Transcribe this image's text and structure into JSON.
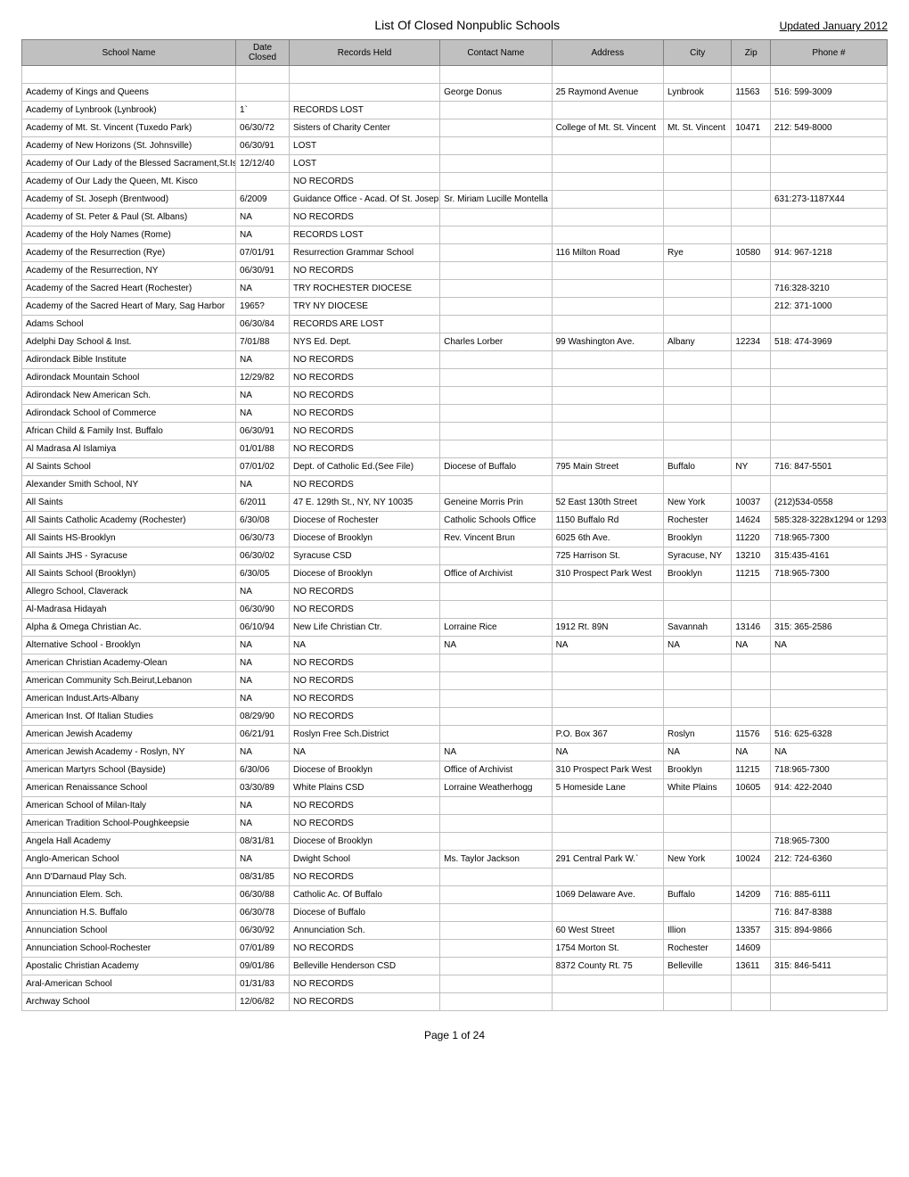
{
  "title": "List Of Closed Nonpublic Schools",
  "updated": "Updated January 2012",
  "footer": "Page 1 of 24",
  "columns": [
    "School Name",
    "Date Closed",
    "Records Held",
    "Contact Name",
    "Address",
    "City",
    "Zip",
    "Phone #"
  ],
  "rows": [
    [
      "",
      "",
      "",
      "",
      "",
      "",
      "",
      ""
    ],
    [
      "Academy of Kings and Queens",
      "",
      "",
      "George Donus",
      "25 Raymond Avenue",
      "Lynbrook",
      "11563",
      "516: 599-3009"
    ],
    [
      "Academy of Lynbrook (Lynbrook)",
      "1`",
      "RECORDS LOST",
      "",
      "",
      "",
      "",
      ""
    ],
    [
      "Academy of Mt. St. Vincent (Tuxedo Park)",
      "06/30/72",
      "Sisters of Charity Center",
      "",
      "College of Mt. St. Vincent",
      "Mt. St. Vincent",
      "10471",
      "212: 549-8000"
    ],
    [
      "Academy of New Horizons (St. Johnsville)",
      "06/30/91",
      "LOST",
      "",
      "",
      "",
      "",
      ""
    ],
    [
      "Academy of Our Lady of the Blessed Sacrament,St.Is",
      "12/12/40",
      "LOST",
      "",
      "",
      "",
      "",
      ""
    ],
    [
      "Academy of Our Lady the Queen, Mt. Kisco",
      "",
      "NO RECORDS",
      "",
      "",
      "",
      "",
      ""
    ],
    [
      "Academy of St. Joseph (Brentwood)",
      "6/2009",
      "Guidance Office - Acad. Of St. Joseph",
      "Sr. Miriam Lucille Montella",
      "",
      "",
      "",
      "631:273-1187X44"
    ],
    [
      "Academy of St. Peter & Paul (St. Albans)",
      "NA",
      "NO RECORDS",
      "",
      "",
      "",
      "",
      ""
    ],
    [
      "Academy of the Holy Names (Rome)",
      "NA",
      "RECORDS LOST",
      "",
      "",
      "",
      "",
      ""
    ],
    [
      "Academy of the Resurrection (Rye)",
      "07/01/91",
      "Resurrection Grammar School",
      "",
      "116 Milton Road",
      "Rye",
      "10580",
      "914: 967-1218"
    ],
    [
      "Academy of the Resurrection, NY",
      "06/30/91",
      "NO RECORDS",
      "",
      "",
      "",
      "",
      ""
    ],
    [
      "Academy of the Sacred Heart (Rochester)",
      "NA",
      "TRY ROCHESTER DIOCESE",
      "",
      "",
      "",
      "",
      "716:328-3210"
    ],
    [
      "Academy of the Sacred Heart of Mary, Sag Harbor",
      "1965?",
      "TRY NY DIOCESE",
      "",
      "",
      "",
      "",
      "212: 371-1000"
    ],
    [
      "Adams School",
      "06/30/84",
      "RECORDS ARE LOST",
      "",
      "",
      "",
      "",
      ""
    ],
    [
      "Adelphi Day School & Inst.",
      "7/01/88",
      "NYS Ed. Dept.",
      "Charles Lorber",
      "99 Washington Ave.",
      "Albany",
      "12234",
      "518: 474-3969"
    ],
    [
      "Adirondack Bible Institute",
      "NA",
      "NO RECORDS",
      "",
      "",
      "",
      "",
      ""
    ],
    [
      "Adirondack Mountain School",
      "12/29/82",
      "NO RECORDS",
      "",
      "",
      "",
      "",
      ""
    ],
    [
      "Adirondack New American Sch.",
      "NA",
      "NO RECORDS",
      "",
      "",
      "",
      "",
      ""
    ],
    [
      "Adirondack School of Commerce",
      "NA",
      "NO RECORDS",
      "",
      "",
      "",
      "",
      ""
    ],
    [
      "African Child & Family Inst. Buffalo",
      "06/30/91",
      "NO RECORDS",
      "",
      "",
      "",
      "",
      ""
    ],
    [
      "Al Madrasa Al Islamiya",
      "01/01/88",
      "NO RECORDS",
      "",
      "",
      "",
      "",
      ""
    ],
    [
      "Al Saints School",
      "07/01/02",
      "Dept. of Catholic Ed.(See File)",
      "Diocese of Buffalo",
      "795 Main Street",
      "Buffalo",
      "NY",
      "716: 847-5501"
    ],
    [
      "Alexander Smith School, NY",
      "NA",
      "NO RECORDS",
      "",
      "",
      "",
      "",
      ""
    ],
    [
      "All Saints",
      "6/2011",
      "47 E. 129th St., NY, NY 10035",
      "Geneine Morris Prin",
      "52 East 130th Street",
      "New York",
      "10037",
      "(212)534-0558"
    ],
    [
      "All Saints Catholic Academy (Rochester)",
      "6/30/08",
      "Diocese of Rochester",
      "Catholic Schools Office",
      "1150 Buffalo Rd",
      "Rochester",
      "14624",
      "585:328-3228x1294 or 1293"
    ],
    [
      "All Saints HS-Brooklyn",
      "06/30/73",
      "Diocese of Brooklyn",
      "Rev. Vincent Brun",
      "6025 6th Ave.",
      "Brooklyn",
      "11220",
      "718:965-7300"
    ],
    [
      "All Saints JHS - Syracuse",
      "06/30/02",
      "Syracuse CSD",
      "",
      "725 Harrison St.",
      "Syracuse, NY",
      "13210",
      "315:435-4161"
    ],
    [
      "All Saints School (Brooklyn)",
      "6/30/05",
      "Diocese of Brooklyn",
      "Office of Archivist",
      "310 Prospect Park West",
      "Brooklyn",
      "11215",
      "718:965-7300"
    ],
    [
      "Allegro School, Claverack",
      "NA",
      "NO RECORDS",
      "",
      "",
      "",
      "",
      ""
    ],
    [
      "Al-Madrasa Hidayah",
      "06/30/90",
      "NO RECORDS",
      "",
      "",
      "",
      "",
      ""
    ],
    [
      "Alpha & Omega Christian Ac.",
      "06/10/94",
      "New Life Christian Ctr.",
      "Lorraine Rice",
      "1912 Rt. 89N",
      "Savannah",
      "13146",
      "315: 365-2586"
    ],
    [
      "Alternative School - Brooklyn",
      "NA",
      "NA",
      "NA",
      "NA",
      "NA",
      "NA",
      "NA"
    ],
    [
      "American Christian Academy-Olean",
      "NA",
      "NO RECORDS",
      "",
      "",
      "",
      "",
      ""
    ],
    [
      "American Community Sch.Beirut,Lebanon",
      "NA",
      "NO RECORDS",
      "",
      "",
      "",
      "",
      ""
    ],
    [
      "American Indust.Arts-Albany",
      "NA",
      "NO RECORDS",
      "",
      "",
      "",
      "",
      ""
    ],
    [
      "American Inst. Of Italian Studies",
      "08/29/90",
      "NO RECORDS",
      "",
      "",
      "",
      "",
      ""
    ],
    [
      "American Jewish Academy",
      "06/21/91",
      "Roslyn Free Sch.District",
      "",
      "P.O. Box 367",
      "Roslyn",
      "11576",
      "516: 625-6328"
    ],
    [
      "American Jewish Academy - Roslyn, NY",
      "NA",
      "NA",
      "NA",
      "NA",
      "NA",
      "NA",
      "NA"
    ],
    [
      "American Martyrs School (Bayside)",
      "6/30/06",
      "Diocese of Brooklyn",
      "Office of Archivist",
      "310 Prospect Park West",
      "Brooklyn",
      "11215",
      "718:965-7300"
    ],
    [
      "American Renaissance School",
      "03/30/89",
      "White Plains CSD",
      "Lorraine Weatherhogg",
      "5 Homeside Lane",
      "White Plains",
      "10605",
      "914: 422-2040"
    ],
    [
      "American School of Milan-Italy",
      "NA",
      "NO RECORDS",
      "",
      "",
      "",
      "",
      ""
    ],
    [
      "American Tradition School-Poughkeepsie",
      "NA",
      "NO RECORDS",
      "",
      "",
      "",
      "",
      ""
    ],
    [
      "Angela Hall Academy",
      "08/31/81",
      "Diocese of Brooklyn",
      "",
      "",
      "",
      "",
      "718:965-7300"
    ],
    [
      "Anglo-American School",
      "NA",
      "Dwight School",
      "Ms. Taylor Jackson",
      "291 Central Park W.`",
      "New York",
      "10024",
      "212: 724-6360"
    ],
    [
      "Ann D'Darnaud Play Sch.",
      "08/31/85",
      "NO RECORDS",
      "",
      "",
      "",
      "",
      ""
    ],
    [
      "Annunciation Elem. Sch.",
      "06/30/88",
      "Catholic Ac. Of Buffalo",
      "",
      "1069 Delaware Ave.",
      "Buffalo",
      "14209",
      "716: 885-6111"
    ],
    [
      "Annunciation H.S. Buffalo",
      "06/30/78",
      "Diocese of Buffalo",
      "",
      "",
      "",
      "",
      "716: 847-8388"
    ],
    [
      "Annunciation School",
      "06/30/92",
      "Annunciation Sch.",
      "",
      "60 West Street",
      "Illion",
      "13357",
      "315: 894-9866"
    ],
    [
      "Annunciation School-Rochester",
      "07/01/89",
      "NO RECORDS",
      "",
      "1754 Morton St.",
      "Rochester",
      "14609",
      ""
    ],
    [
      "Apostalic Christian Academy",
      "09/01/86",
      "Belleville Henderson CSD",
      "",
      "8372 County Rt. 75",
      "Belleville",
      "13611",
      "315: 846-5411"
    ],
    [
      "Aral-American School",
      "01/31/83",
      "NO RECORDS",
      "",
      "",
      "",
      "",
      ""
    ],
    [
      "Archway School",
      "12/06/82",
      "NO RECORDS",
      "",
      "",
      "",
      "",
      ""
    ]
  ]
}
